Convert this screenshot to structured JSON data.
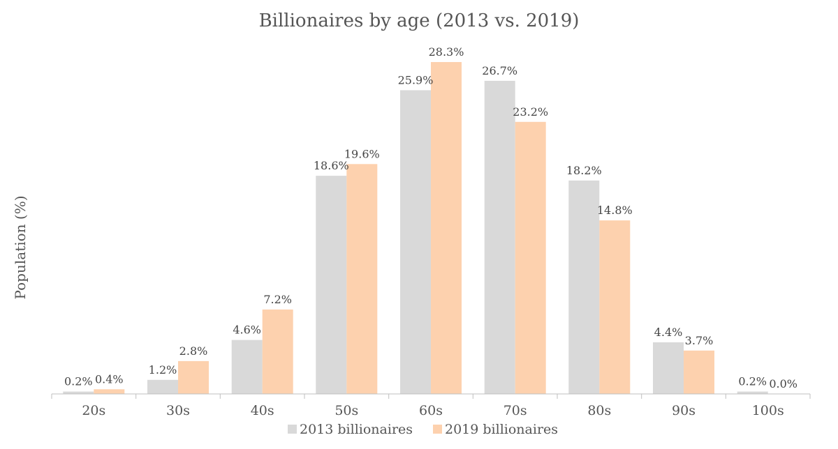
{
  "chart_data": {
    "type": "bar",
    "title": "Billionaires by age (2013 vs. 2019)",
    "xlabel": "",
    "ylabel": "Population (%)",
    "ylim": [
      0,
      30
    ],
    "grid": false,
    "legend_position": "bottom",
    "value_suffix": "%",
    "categories": [
      "20s",
      "30s",
      "40s",
      "50s",
      "60s",
      "70s",
      "80s",
      "90s",
      "100s"
    ],
    "series": [
      {
        "name": "2013 billionaires",
        "color": "#d9d9d9",
        "values": [
          0.2,
          1.2,
          4.6,
          18.6,
          25.9,
          26.7,
          18.2,
          4.4,
          0.2
        ]
      },
      {
        "name": "2019 billionaires",
        "color": "#fdd1ae",
        "values": [
          0.4,
          2.8,
          7.2,
          19.6,
          28.3,
          23.2,
          14.8,
          3.7,
          0.0
        ]
      }
    ]
  }
}
